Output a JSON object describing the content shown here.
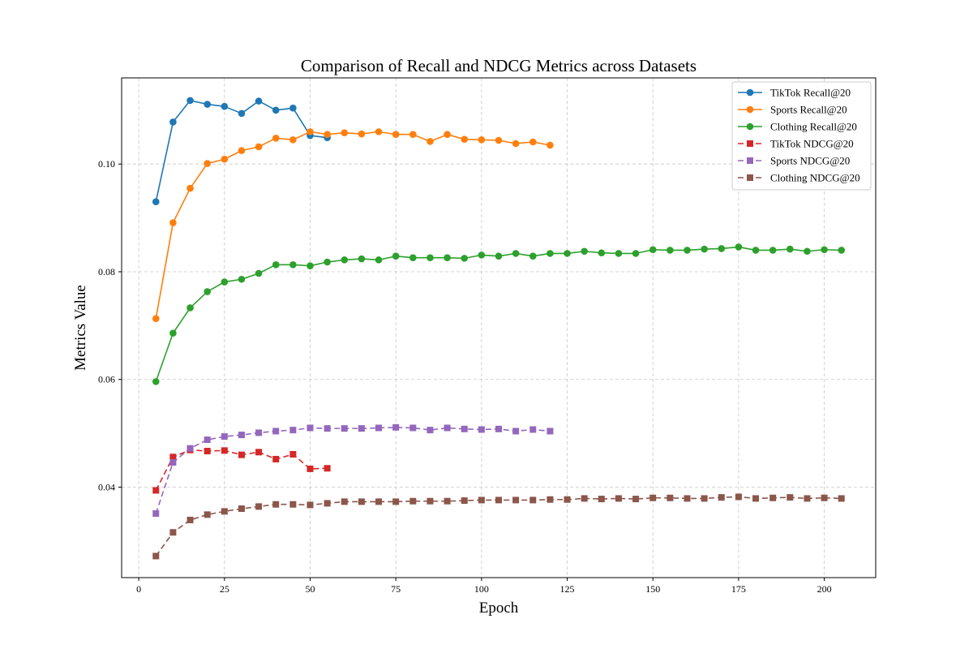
{
  "chart_data": {
    "type": "line",
    "title": "Comparison of Recall and NDCG Metrics across Datasets",
    "xlabel": "Epoch",
    "ylabel": "Metrics Value",
    "xlim": [
      -5,
      215
    ],
    "ylim": [
      0.0232,
      0.116
    ],
    "xticks": [
      0,
      25,
      50,
      75,
      100,
      125,
      150,
      175,
      200
    ],
    "yticks": [
      0.04,
      0.06,
      0.08,
      0.1
    ],
    "ytick_labels": [
      "0.04",
      "0.06",
      "0.08",
      "0.10"
    ],
    "grid": true,
    "grid_style": "dashed",
    "legend_position": "top-right",
    "series": [
      {
        "name": "TikTok Recall@20",
        "color": "#1f77b4",
        "line_style": "solid",
        "marker": "circle",
        "x": [
          5,
          10,
          15,
          20,
          25,
          30,
          35,
          40,
          45,
          50,
          55
        ],
        "y": [
          0.093,
          0.1078,
          0.1118,
          0.1111,
          0.1107,
          0.1094,
          0.1117,
          0.11,
          0.1104,
          0.1053,
          0.1049
        ]
      },
      {
        "name": "Sports Recall@20",
        "color": "#ff7f0e",
        "line_style": "solid",
        "marker": "circle",
        "x": [
          5,
          10,
          15,
          20,
          25,
          30,
          35,
          40,
          45,
          50,
          55,
          60,
          65,
          70,
          75,
          80,
          85,
          90,
          95,
          100,
          105,
          110,
          115,
          120
        ],
        "y": [
          0.0713,
          0.0891,
          0.0955,
          0.1001,
          0.1009,
          0.1025,
          0.1032,
          0.1048,
          0.1045,
          0.106,
          0.1055,
          0.1058,
          0.1056,
          0.106,
          0.1055,
          0.1055,
          0.1042,
          0.1055,
          0.1046,
          0.1045,
          0.1044,
          0.1038,
          0.1041,
          0.1035
        ]
      },
      {
        "name": "Clothing Recall@20",
        "color": "#2ca02c",
        "line_style": "solid",
        "marker": "circle",
        "x": [
          5,
          10,
          15,
          20,
          25,
          30,
          35,
          40,
          45,
          50,
          55,
          60,
          65,
          70,
          75,
          80,
          85,
          90,
          95,
          100,
          105,
          110,
          115,
          120,
          125,
          130,
          135,
          140,
          145,
          150,
          155,
          160,
          165,
          170,
          175,
          180,
          185,
          190,
          195,
          200,
          205
        ],
        "y": [
          0.0596,
          0.0686,
          0.0733,
          0.0763,
          0.0781,
          0.0786,
          0.0797,
          0.0813,
          0.0813,
          0.0811,
          0.0818,
          0.0822,
          0.0824,
          0.0822,
          0.0829,
          0.0826,
          0.0826,
          0.0826,
          0.0825,
          0.0831,
          0.0829,
          0.0834,
          0.0829,
          0.0834,
          0.0834,
          0.0838,
          0.0835,
          0.0834,
          0.0834,
          0.0841,
          0.084,
          0.084,
          0.0842,
          0.0843,
          0.0846,
          0.084,
          0.084,
          0.0842,
          0.0838,
          0.0841,
          0.084
        ]
      },
      {
        "name": "TikTok NDCG@20",
        "color": "#d62728",
        "line_style": "dashed",
        "marker": "square",
        "x": [
          5,
          10,
          15,
          20,
          25,
          30,
          35,
          40,
          45,
          50,
          55
        ],
        "y": [
          0.0394,
          0.0456,
          0.0469,
          0.0467,
          0.0468,
          0.046,
          0.0465,
          0.0452,
          0.0461,
          0.0434,
          0.0435
        ]
      },
      {
        "name": "Sports NDCG@20",
        "color": "#9467bd",
        "line_style": "dashed",
        "marker": "square",
        "x": [
          5,
          10,
          15,
          20,
          25,
          30,
          35,
          40,
          45,
          50,
          55,
          60,
          65,
          70,
          75,
          80,
          85,
          90,
          95,
          100,
          105,
          110,
          115,
          120
        ],
        "y": [
          0.0351,
          0.0446,
          0.0472,
          0.0488,
          0.0494,
          0.0497,
          0.0501,
          0.0504,
          0.0506,
          0.051,
          0.0509,
          0.0509,
          0.0509,
          0.051,
          0.0511,
          0.051,
          0.0506,
          0.051,
          0.0508,
          0.0507,
          0.0508,
          0.0504,
          0.0507,
          0.0504
        ]
      },
      {
        "name": "Clothing NDCG@20",
        "color": "#8c564b",
        "line_style": "dashed",
        "marker": "square",
        "x": [
          5,
          10,
          15,
          20,
          25,
          30,
          35,
          40,
          45,
          50,
          55,
          60,
          65,
          70,
          75,
          80,
          85,
          90,
          95,
          100,
          105,
          110,
          115,
          120,
          125,
          130,
          135,
          140,
          145,
          150,
          155,
          160,
          165,
          170,
          175,
          180,
          185,
          190,
          195,
          200,
          205
        ],
        "y": [
          0.0272,
          0.0316,
          0.0339,
          0.0349,
          0.0355,
          0.036,
          0.0364,
          0.0368,
          0.0368,
          0.0367,
          0.037,
          0.0373,
          0.0373,
          0.0373,
          0.0373,
          0.0374,
          0.0374,
          0.0374,
          0.0375,
          0.0376,
          0.0376,
          0.0376,
          0.0376,
          0.0377,
          0.0377,
          0.0379,
          0.0378,
          0.0379,
          0.0378,
          0.038,
          0.038,
          0.0379,
          0.0379,
          0.0381,
          0.0382,
          0.0379,
          0.038,
          0.0381,
          0.0379,
          0.038,
          0.0379
        ]
      }
    ]
  }
}
